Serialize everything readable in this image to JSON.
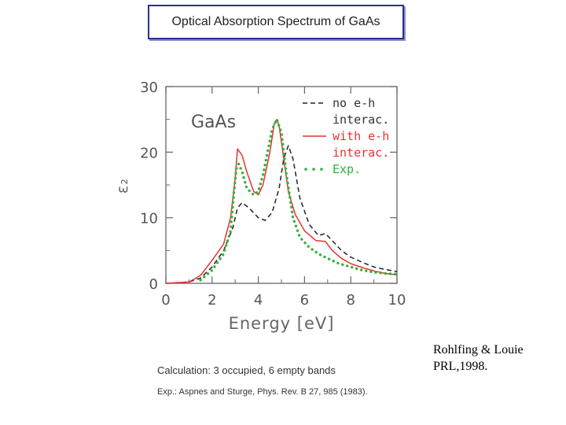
{
  "title": "Optical Absorption Spectrum of GaAs",
  "chart_data": {
    "type": "line",
    "title": "GaAs",
    "xlabel": "Energy [eV]",
    "ylabel": "ε₂",
    "xlim": [
      0,
      10
    ],
    "ylim": [
      0,
      30
    ],
    "x_ticks": [
      "0",
      "2",
      "4",
      "6",
      "8",
      "10"
    ],
    "y_ticks": [
      "0",
      "10",
      "20",
      "30"
    ],
    "legend_position": "top-right",
    "series": [
      {
        "name": "no e-h interac.",
        "legend_lines": [
          "no e-h",
          "interac."
        ],
        "style": "dashed",
        "color": "#222222",
        "x": [
          0,
          1.0,
          1.5,
          2.0,
          2.5,
          2.9,
          3.1,
          3.3,
          3.6,
          4.0,
          4.3,
          4.6,
          4.9,
          5.1,
          5.3,
          5.5,
          5.8,
          6.2,
          6.6,
          6.9,
          7.2,
          7.6,
          8.0,
          8.5,
          9.0,
          9.5,
          10.0
        ],
        "y": [
          0,
          0.2,
          0.8,
          2.5,
          5.0,
          8.5,
          11.5,
          12.3,
          11.5,
          10.0,
          9.6,
          10.8,
          14.5,
          19.0,
          21.0,
          19.0,
          13.0,
          9.0,
          7.3,
          7.6,
          6.5,
          5.0,
          4.0,
          3.2,
          2.5,
          2.1,
          1.8
        ]
      },
      {
        "name": "with e-h interac.",
        "legend_lines": [
          "with e-h",
          "interac."
        ],
        "style": "solid",
        "color": "#e8322e",
        "x": [
          0,
          1.0,
          1.5,
          2.0,
          2.5,
          2.8,
          3.0,
          3.1,
          3.3,
          3.5,
          3.8,
          4.0,
          4.2,
          4.5,
          4.7,
          4.8,
          4.9,
          5.1,
          5.3,
          5.6,
          6.0,
          6.5,
          6.9,
          7.2,
          7.6,
          8.0,
          8.5,
          9.0,
          9.5,
          10.0
        ],
        "y": [
          0,
          0.2,
          1.2,
          3.5,
          6.0,
          10.0,
          16.0,
          20.5,
          19.5,
          17.0,
          14.0,
          13.5,
          15.0,
          20.0,
          24.5,
          25.0,
          24.0,
          19.0,
          14.0,
          10.5,
          8.0,
          6.5,
          6.4,
          5.0,
          3.8,
          3.0,
          2.4,
          1.9,
          1.5,
          1.3
        ]
      },
      {
        "name": "Exp.",
        "legend_lines": [
          "Exp."
        ],
        "style": "dotted",
        "color": "#2db33c",
        "x": [
          1.5,
          2.0,
          2.5,
          2.8,
          2.95,
          3.05,
          3.15,
          3.3,
          3.5,
          3.8,
          4.0,
          4.2,
          4.4,
          4.6,
          4.8,
          5.0,
          5.2,
          5.5,
          5.8,
          6.2,
          6.6,
          7.0,
          7.5,
          8.0,
          8.5,
          9.0,
          9.5,
          10.0
        ],
        "y": [
          0.5,
          2.0,
          4.5,
          8.0,
          14.0,
          17.5,
          18.2,
          17.0,
          14.5,
          13.5,
          14.0,
          16.5,
          20.0,
          23.5,
          25.0,
          23.0,
          17.0,
          10.0,
          7.0,
          5.5,
          4.5,
          3.8,
          3.0,
          2.5,
          2.0,
          1.7,
          1.5,
          1.4
        ]
      }
    ]
  },
  "citation": {
    "line1": "Rohlfing & Louie",
    "line2": "PRL,1998."
  },
  "notes": {
    "calculation": "Calculation: 3 occupied, 6 empty bands",
    "experiment": "Exp.: Aspnes and Sturge, Phys. Rev. B 27, 985 (1983)."
  }
}
